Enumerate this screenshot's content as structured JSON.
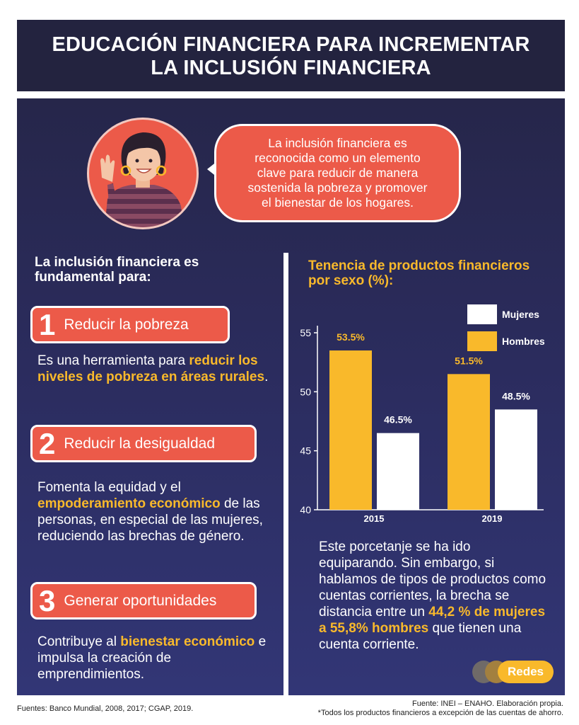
{
  "header": {
    "title_lines": [
      "EDUCACIÓN FINANCIERA PARA INCREMENTAR",
      "LA INCLUSIÓN FINANCIERA"
    ]
  },
  "bubble": {
    "lines": [
      "La inclusión financiera es",
      "reconocida como un elemento",
      "clave para reducir de manera",
      "sostenida la pobreza y promover",
      "el bienestar de los hogares."
    ]
  },
  "intro": {
    "lines": [
      "La inclusión financiera es",
      "fundamental para:"
    ]
  },
  "points": [
    {
      "number": "1",
      "label": "Reducir la pobreza",
      "desc": {
        "p1": "Es una herramienta para ",
        "hl": "reducir los niveles de pobreza en áreas rurales",
        "p2": "."
      }
    },
    {
      "number": "2",
      "label": "Reducir la desigualdad",
      "desc": {
        "p1": "Fomenta la equidad y el ",
        "hl": "empoderamiento económico",
        "p2": " de las personas, en especial de las mujeres, reduciendo las brechas de género."
      }
    },
    {
      "number": "3",
      "label": "Generar oportunidades",
      "desc": {
        "p1": "Contribuye al ",
        "hl": "bienestar económico",
        "p2": " e impulsa la creación de emprendimientos."
      }
    }
  ],
  "chart_title_lines": [
    "Tenencia de productos financieros",
    "por sexo (%):"
  ],
  "chart_data": {
    "type": "bar",
    "categories": [
      "2015",
      "2019"
    ],
    "series": [
      {
        "name": "Hombres",
        "values": [
          53.5,
          51.5
        ],
        "labels": [
          "53.5%",
          "51.5%"
        ],
        "color": "#f9b92b"
      },
      {
        "name": "Mujeres",
        "values": [
          46.5,
          48.5
        ],
        "labels": [
          "46.5%",
          "48.5%"
        ],
        "color": "#ffffff"
      }
    ],
    "legend_order": [
      "Mujeres",
      "Hombres"
    ],
    "ylim": [
      40,
      55
    ],
    "yticks": [
      40,
      45,
      50,
      55
    ],
    "legend_position": "top-right",
    "grid": false
  },
  "chart_note": {
    "p1": "Este porcetanje se ha ido equiparando. Sin embargo, si hablamos de tipos de productos como cuentas corrientes, la brecha se distancia entre un ",
    "hl": "44,2 % de mujeres a 55,8% hombres",
    "p2": " que tienen una cuenta corriente."
  },
  "logo": {
    "text": "Redes"
  },
  "sources": {
    "left": "Fuentes: Banco Mundial, 2008, 2017; CGAP, 2019.",
    "right_lines": [
      "Fuente: INEI – ENAHO. Elaboración propia.",
      "*Todos los productos financieros a excepción de las cuentas de ahorro."
    ]
  },
  "colors": {
    "navy": "#23233f",
    "coral": "#ec5a49",
    "gold": "#f9b92b",
    "white": "#ffffff"
  },
  "icons": {
    "avatar": "woman-waving-illustration"
  }
}
